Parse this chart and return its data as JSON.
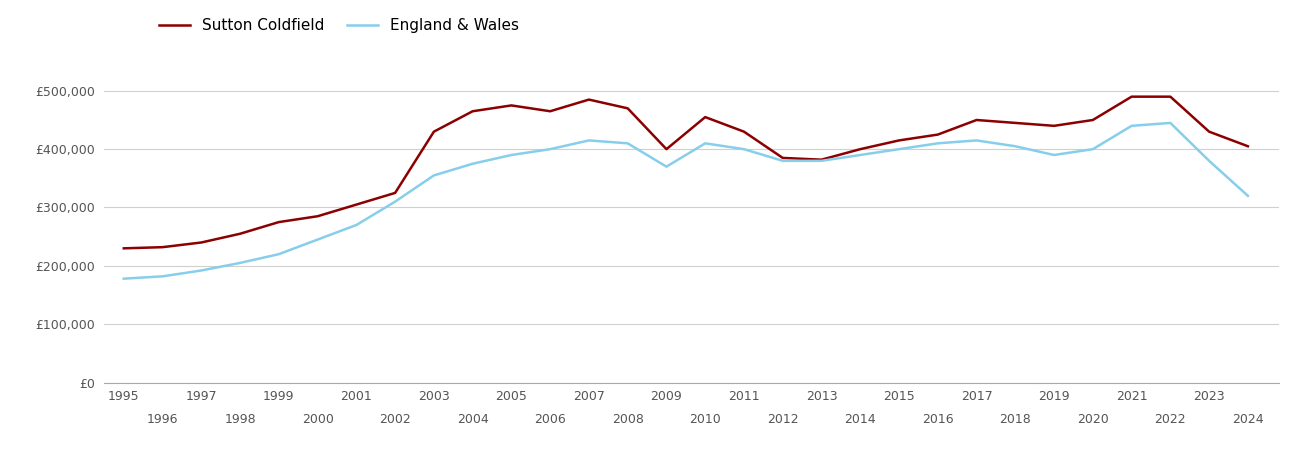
{
  "sutton_coldfield": {
    "years": [
      1995,
      1996,
      1997,
      1998,
      1999,
      2000,
      2001,
      2002,
      2003,
      2004,
      2005,
      2006,
      2007,
      2008,
      2009,
      2010,
      2011,
      2012,
      2013,
      2014,
      2015,
      2016,
      2017,
      2018,
      2019,
      2020,
      2021,
      2022,
      2023,
      2024
    ],
    "values": [
      230000,
      232000,
      240000,
      255000,
      275000,
      285000,
      305000,
      325000,
      430000,
      465000,
      475000,
      465000,
      485000,
      470000,
      400000,
      455000,
      430000,
      385000,
      382000,
      400000,
      415000,
      425000,
      450000,
      445000,
      440000,
      450000,
      490000,
      490000,
      430000,
      405000
    ]
  },
  "england_wales": {
    "years": [
      1995,
      1996,
      1997,
      1998,
      1999,
      2000,
      2001,
      2002,
      2003,
      2004,
      2005,
      2006,
      2007,
      2008,
      2009,
      2010,
      2011,
      2012,
      2013,
      2014,
      2015,
      2016,
      2017,
      2018,
      2019,
      2020,
      2021,
      2022,
      2023,
      2024
    ],
    "values": [
      178000,
      182000,
      192000,
      205000,
      220000,
      245000,
      270000,
      310000,
      355000,
      375000,
      390000,
      400000,
      415000,
      410000,
      370000,
      410000,
      400000,
      380000,
      380000,
      390000,
      400000,
      410000,
      415000,
      405000,
      390000,
      400000,
      440000,
      445000,
      380000,
      320000
    ]
  },
  "sutton_color": "#8B0000",
  "england_color": "#87CEEB",
  "background_color": "#ffffff",
  "grid_color": "#d0d0d0",
  "yticks": [
    0,
    100000,
    200000,
    300000,
    400000,
    500000
  ],
  "ylim": [
    0,
    540000
  ],
  "legend_labels": [
    "Sutton Coldfield",
    "England & Wales"
  ],
  "x_odd_ticks": [
    1995,
    1997,
    1999,
    2001,
    2003,
    2005,
    2007,
    2009,
    2011,
    2013,
    2015,
    2017,
    2019,
    2021,
    2023
  ],
  "x_even_ticks": [
    1996,
    1998,
    2000,
    2002,
    2004,
    2006,
    2008,
    2010,
    2012,
    2014,
    2016,
    2018,
    2020,
    2022,
    2024
  ],
  "xlim": [
    1994.5,
    2024.8
  ],
  "line_width": 1.8
}
